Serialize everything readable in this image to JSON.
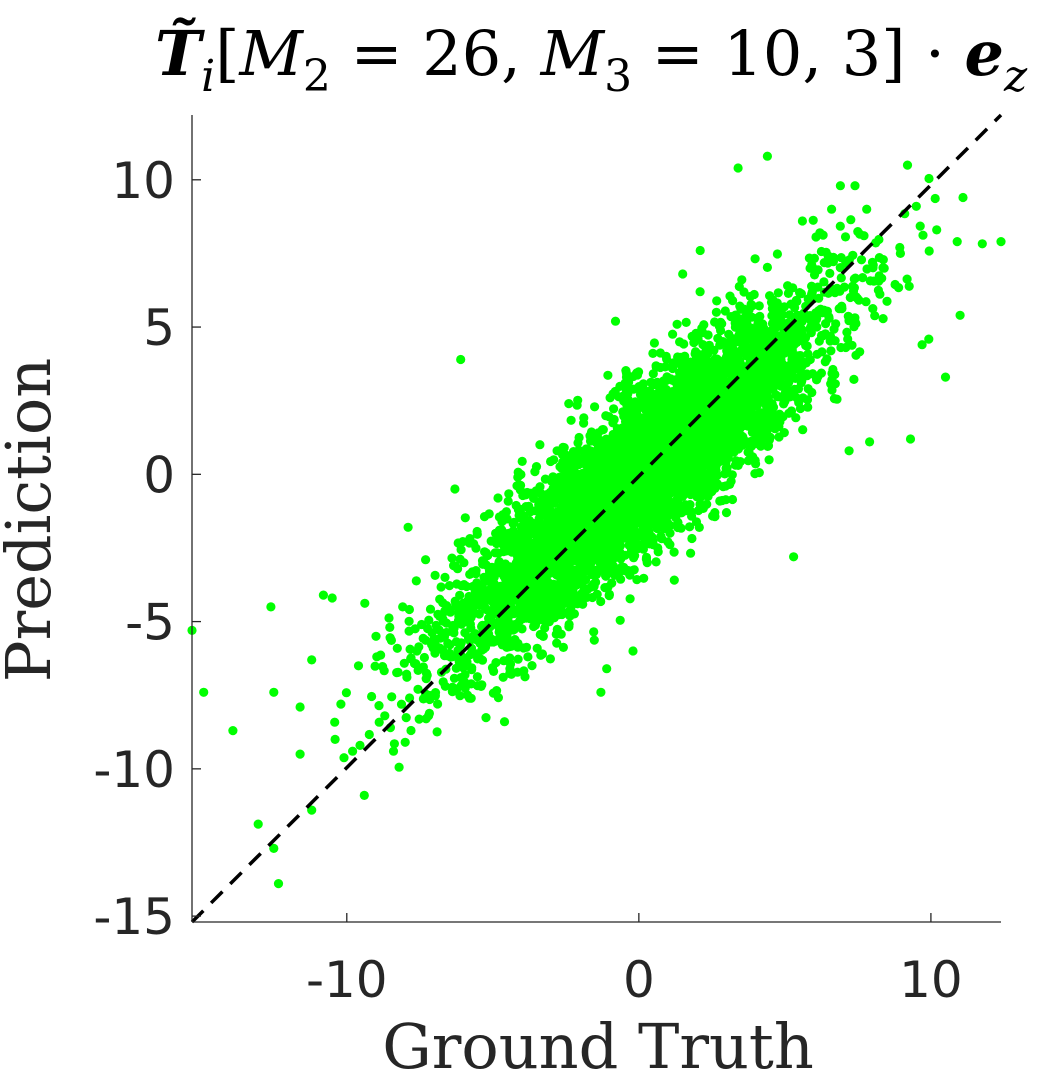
{
  "colors": {
    "points": "#00ff00",
    "reference_line": "#000000",
    "axes": "#262626",
    "background": "#ffffff"
  },
  "chart_data": {
    "type": "scatter",
    "title": "T̃ᵢ[M₂ = 26, M₃ = 10,3] · e_z",
    "title_parts": {
      "tensor": "T̃",
      "tensor_sub": "i",
      "open": "[",
      "m2": "M",
      "m2_sub": "2",
      "eq1": " = 26, ",
      "m3": "M",
      "m3_sub": "3",
      "eq2": " = 10, 3] · ",
      "vec": "e",
      "vec_sub": "z"
    },
    "xlabel": "Ground Truth",
    "ylabel": "Prediction",
    "xlim": [
      -15.3,
      12.4
    ],
    "ylim": [
      -15.2,
      12.2
    ],
    "xticks": [
      -10,
      0,
      10
    ],
    "xtick_labels": [
      "-10",
      "0",
      "10"
    ],
    "yticks": [
      -15,
      -10,
      -5,
      0,
      5,
      10
    ],
    "ytick_labels": [
      "-15",
      "-10",
      "-5",
      "0",
      "5",
      "10"
    ],
    "grid": false,
    "reference_line": {
      "style": "dashed",
      "from": [
        -15.3,
        -15.2
      ],
      "to": [
        12.4,
        12.2
      ]
    },
    "series": [
      {
        "points_outliers": [
          [
            -15.3,
            -5.3
          ],
          [
            -14.9,
            -7.4
          ],
          [
            -13.9,
            -8.7
          ],
          [
            -12.5,
            -12.7
          ],
          [
            -12.6,
            -4.5
          ],
          [
            -12.5,
            -7.4
          ],
          [
            -11.6,
            -7.9
          ],
          [
            -11.6,
            -9.5
          ],
          [
            -11.2,
            -11.4
          ],
          [
            -11.2,
            -6.3
          ],
          [
            -10.8,
            -4.1
          ],
          [
            -10.5,
            -4.2
          ],
          [
            -10.4,
            -9.0
          ],
          [
            -10.2,
            -7.8
          ],
          [
            -9.8,
            -9.4
          ],
          [
            -9.4,
            -10.9
          ],
          [
            -9.6,
            -6.5
          ],
          [
            -9.0,
            -5.5
          ],
          [
            -8.7,
            -8.2
          ],
          [
            -8.4,
            -9.4
          ],
          [
            -8.0,
            -9.1
          ],
          [
            -7.9,
            -1.8
          ],
          [
            -7.6,
            -6.0
          ],
          [
            -7.3,
            -2.9
          ],
          [
            -7.2,
            -8.2
          ],
          [
            -6.3,
            -0.5
          ],
          [
            -6.1,
            3.9
          ],
          [
            -5.8,
            -7.6
          ],
          [
            -5.4,
            -7.2
          ],
          [
            -4.6,
            -8.4
          ],
          [
            -4.2,
            -2.4
          ],
          [
            -3.8,
            -6.2
          ],
          [
            -3.3,
            -6.1
          ],
          [
            -2.8,
            0.8
          ],
          [
            -2.4,
            2.4
          ],
          [
            -1.3,
            -7.4
          ],
          [
            -1.1,
            -6.6
          ],
          [
            -0.8,
            5.2
          ],
          [
            -0.2,
            -6.0
          ],
          [
            1.5,
            6.8
          ],
          [
            2.1,
            7.6
          ],
          [
            2.6,
            -1.3
          ],
          [
            3.0,
            -1.3
          ],
          [
            3.4,
            10.4
          ],
          [
            4.4,
            10.8
          ],
          [
            5.3,
            -2.8
          ],
          [
            5.6,
            8.6
          ],
          [
            6.2,
            8.2
          ],
          [
            6.6,
            9.0
          ],
          [
            6.9,
            9.8
          ],
          [
            7.2,
            0.8
          ],
          [
            7.4,
            9.8
          ],
          [
            7.8,
            9.0
          ],
          [
            7.9,
            1.1
          ],
          [
            8.0,
            7.2
          ],
          [
            8.4,
            7.0
          ],
          [
            9.2,
            10.5
          ],
          [
            9.3,
            1.2
          ],
          [
            9.5,
            9.1
          ],
          [
            9.7,
            4.4
          ],
          [
            10.2,
            8.3
          ],
          [
            10.5,
            3.3
          ],
          [
            10.9,
            7.9
          ],
          [
            11.1,
            9.4
          ],
          [
            11.0,
            5.4
          ],
          [
            12.4,
            7.9
          ]
        ]
      }
    ]
  }
}
